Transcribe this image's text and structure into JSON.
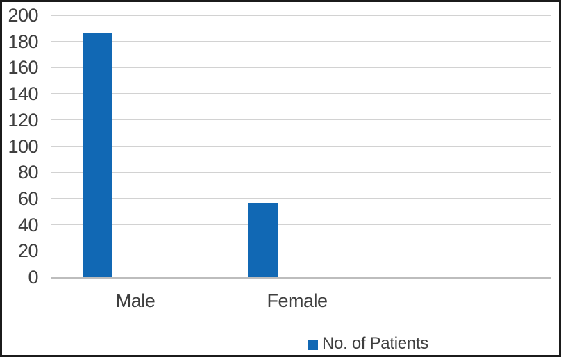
{
  "chart_data": {
    "type": "bar",
    "categories": [
      "Male",
      "Female"
    ],
    "series": [
      {
        "name": "No. of Patients",
        "values": [
          186,
          57
        ]
      }
    ],
    "ylim": [
      0,
      200
    ],
    "ytick_step": 20,
    "yticks": [
      0,
      20,
      40,
      60,
      80,
      100,
      120,
      140,
      160,
      180,
      200
    ],
    "grid": true,
    "legend_position": "bottom",
    "legend_label": "No. of Patients"
  },
  "colors": {
    "bar": "#1168b4",
    "gridline": "#d2d2d2",
    "axis_line": "#bdbdbd",
    "text": "#3f3f3f",
    "border": "#1b1b1b"
  }
}
